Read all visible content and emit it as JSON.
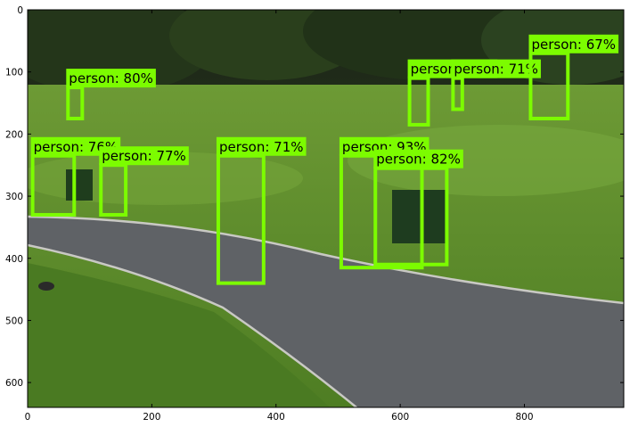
{
  "image": {
    "description": "park scene: walkway, lawn, trees, people on benches",
    "width_units": 960,
    "height_units": 640
  },
  "axes": {
    "x_ticks": [
      0,
      200,
      400,
      600,
      800
    ],
    "y_ticks": [
      0,
      100,
      200,
      300,
      400,
      500,
      600
    ],
    "xlim": [
      0,
      960
    ],
    "ylim": [
      640,
      0
    ]
  },
  "colors": {
    "box": "#7cfc00",
    "label_bg": "#7cfc00",
    "label_text": "#000000",
    "path": "#5a5d61",
    "grass": "#5b8a2e"
  },
  "detections": [
    {
      "label": "person: 80%",
      "x1": 65,
      "y1": 125,
      "x2": 88,
      "y2": 175
    },
    {
      "label": "person: 94%",
      "x1": 615,
      "y1": 110,
      "x2": 645,
      "y2": 185
    },
    {
      "label": "person: 71%",
      "x1": 685,
      "y1": 110,
      "x2": 700,
      "y2": 160
    },
    {
      "label": "person: 67%",
      "x1": 810,
      "y1": 70,
      "x2": 870,
      "y2": 175
    },
    {
      "label": "person: 76%",
      "x1": 8,
      "y1": 235,
      "x2": 75,
      "y2": 330
    },
    {
      "label": "person: 77%",
      "x1": 118,
      "y1": 250,
      "x2": 158,
      "y2": 330
    },
    {
      "label": "person: 71%",
      "x1": 307,
      "y1": 235,
      "x2": 380,
      "y2": 440
    },
    {
      "label": "person: 93%",
      "x1": 505,
      "y1": 235,
      "x2": 635,
      "y2": 415
    },
    {
      "label": "person: 82%",
      "x1": 560,
      "y1": 255,
      "x2": 675,
      "y2": 410
    }
  ]
}
